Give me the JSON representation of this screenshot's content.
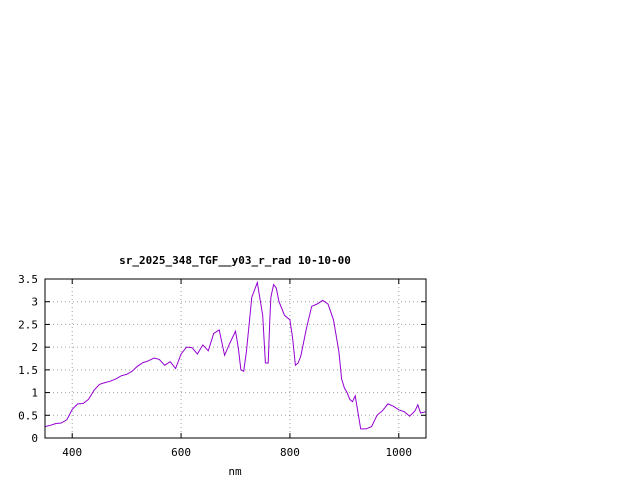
{
  "chart_data": {
    "type": "line",
    "title": "sr_2025_348_TGF__y03_r_rad 10-10-00",
    "xlabel": "nm",
    "ylabel": "",
    "xlim": [
      350,
      1050
    ],
    "ylim": [
      0,
      3.5
    ],
    "xticks": [
      400,
      600,
      800,
      1000
    ],
    "xtick_labels": [
      "400",
      "600",
      "800",
      "1000"
    ],
    "yticks": [
      0,
      0.5,
      1,
      1.5,
      2,
      2.5,
      3,
      3.5
    ],
    "ytick_labels": [
      "0",
      "0.5",
      "1",
      "1.5",
      "2",
      "2.5",
      "3",
      "3.5"
    ],
    "grid": true,
    "legend": "none",
    "series_color": "#9400d3",
    "series": [
      {
        "x": [
          350,
          360,
          370,
          380,
          390,
          400,
          410,
          420,
          430,
          440,
          450,
          460,
          470,
          480,
          490,
          500,
          510,
          520,
          530,
          540,
          550,
          560,
          570,
          580,
          590,
          600,
          610,
          620,
          630,
          640,
          650,
          660,
          670,
          680,
          690,
          700,
          705,
          710,
          715,
          720,
          730,
          740,
          750,
          755,
          760,
          763,
          765,
          770,
          775,
          780,
          785,
          790,
          800,
          805,
          810,
          815,
          820,
          830,
          840,
          850,
          860,
          870,
          880,
          890,
          895,
          900,
          905,
          910,
          915,
          920,
          930,
          940,
          950,
          960,
          970,
          980,
          990,
          1000,
          1010,
          1020,
          1030,
          1035,
          1040,
          1050
        ],
        "y": [
          0.25,
          0.28,
          0.32,
          0.33,
          0.4,
          0.63,
          0.75,
          0.76,
          0.85,
          1.05,
          1.18,
          1.22,
          1.25,
          1.3,
          1.37,
          1.4,
          1.47,
          1.58,
          1.66,
          1.7,
          1.76,
          1.73,
          1.6,
          1.68,
          1.53,
          1.85,
          2.0,
          1.99,
          1.85,
          2.05,
          1.92,
          2.3,
          2.38,
          1.82,
          2.1,
          2.35,
          2.0,
          1.5,
          1.47,
          1.9,
          3.1,
          3.42,
          2.7,
          1.65,
          1.65,
          2.6,
          3.1,
          3.38,
          3.3,
          3.0,
          2.85,
          2.7,
          2.6,
          2.2,
          1.6,
          1.65,
          1.8,
          2.4,
          2.9,
          2.95,
          3.03,
          2.95,
          2.6,
          1.9,
          1.3,
          1.1,
          1.0,
          0.85,
          0.8,
          0.93,
          0.2,
          0.2,
          0.25,
          0.5,
          0.6,
          0.75,
          0.7,
          0.62,
          0.58,
          0.48,
          0.6,
          0.73,
          0.55,
          0.58
        ]
      }
    ]
  }
}
